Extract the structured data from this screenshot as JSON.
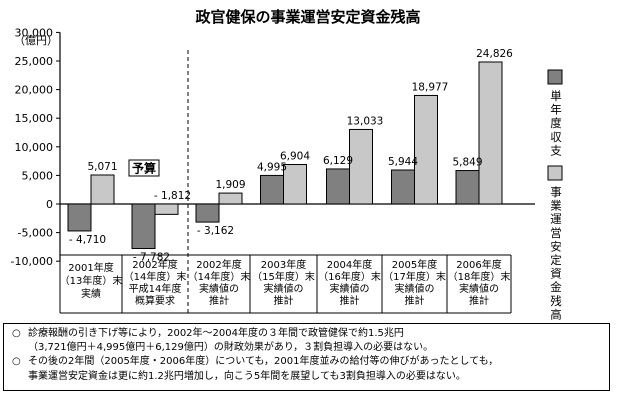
{
  "chart_data": {
    "type": "bar",
    "title": "政官健保の事業運営安定資金残高",
    "unit_label": "（億円）",
    "ylim": [
      -10000,
      30000
    ],
    "yticks": [
      "30,000",
      "25,000",
      "20,000",
      "15,000",
      "10,000",
      "5,000",
      "0",
      "-5,000",
      "-10,000"
    ],
    "ytick_values": [
      30000,
      25000,
      20000,
      15000,
      10000,
      5000,
      0,
      -5000,
      -10000
    ],
    "categories": [
      [
        "2001年度",
        "（13年度）末",
        "実績"
      ],
      [
        "2002年度",
        "（14年度）末",
        "平成14年度",
        "概算要求"
      ],
      [
        "2002年度",
        "（14年度）末",
        "実績値の",
        "推計"
      ],
      [
        "2003年度",
        "（15年度）末",
        "実績値の",
        "推計"
      ],
      [
        "2004年度",
        "（16年度）末",
        "実績値の",
        "推計"
      ],
      [
        "2005年度",
        "（17年度）末",
        "実績値の",
        "推計"
      ],
      [
        "2006年度",
        "（18年度）末",
        "実績値の",
        "推計"
      ]
    ],
    "series": [
      {
        "name": "単年度収支",
        "color": "#808080",
        "values": [
          -4710,
          -7782,
          -3162,
          4995,
          6129,
          5944,
          5849
        ],
        "labels": [
          "- 4,710",
          "- 7,782",
          "- 3,162",
          "4,995",
          "6,129",
          "5,944",
          "5,849"
        ]
      },
      {
        "name": "事業運営安定資金残高",
        "color": "#c8c8c8",
        "values": [
          5071,
          -1812,
          1909,
          6904,
          13033,
          18977,
          24826
        ],
        "labels": [
          "5,071",
          "- 1,812",
          "1,909",
          "6,904",
          "13,033",
          "18,977",
          "24,826"
        ]
      }
    ],
    "annotation": "予算",
    "legend_placement": "right"
  },
  "notes": [
    {
      "bullet": "○",
      "lines": [
        "診療報酬の引き下げ等により，2002年～2004年度の３年間で政管健保で約1.5兆円",
        "（3,721億円＋4,995億円＋6,129億円）の財政効果があり，３割負担導入の必要はない。"
      ]
    },
    {
      "bullet": "○",
      "lines": [
        "その後の2年間（2005年度・2006年度）についても，2001年度並みの給付等の伸びがあったとしても，",
        "事業運営安定資金は更に約1.2兆円増加し，向こう5年間を展望しても3割負担導入の必要はない。"
      ]
    }
  ]
}
